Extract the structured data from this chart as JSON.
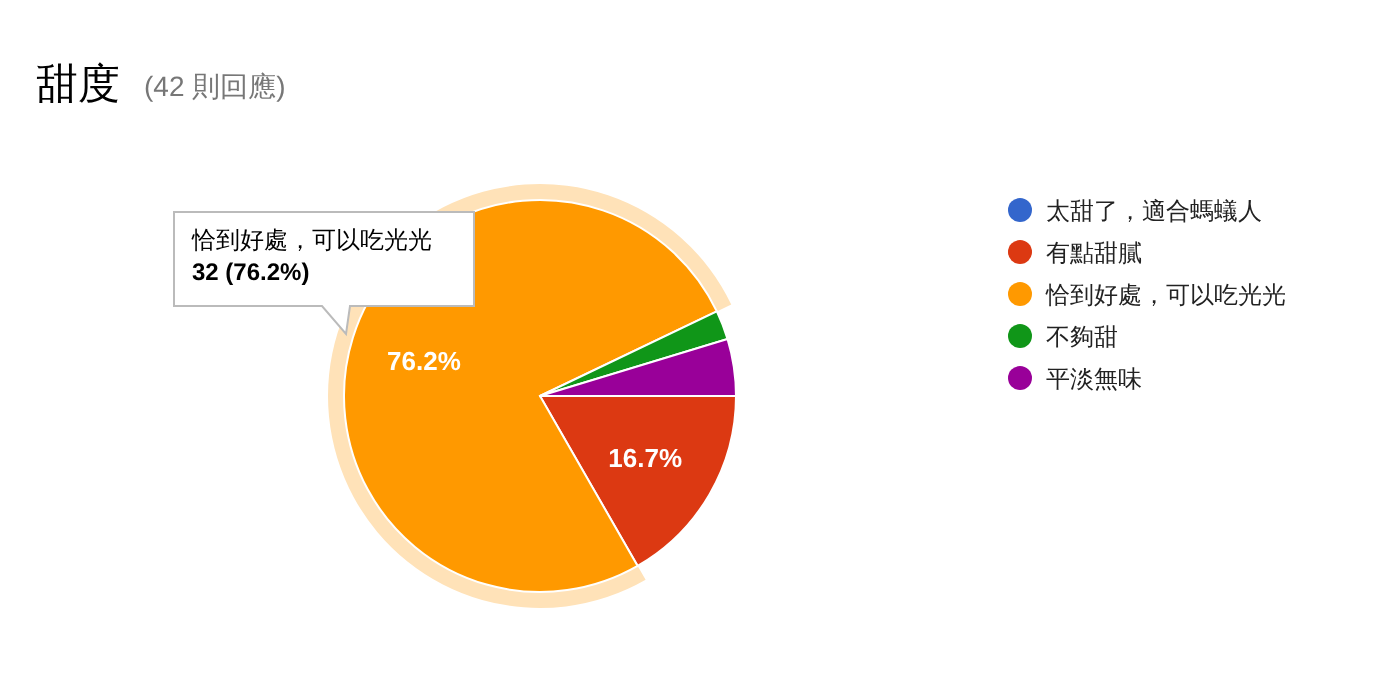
{
  "chart_data": {
    "type": "pie",
    "title": "甜度",
    "subtitle": "(42 則回應)",
    "categories": [
      "太甜了，適合螞蟻人",
      "有點甜膩",
      "恰到好處，可以吃光光",
      "不夠甜",
      "平淡無味"
    ],
    "values": [
      0,
      16.7,
      76.2,
      2.4,
      4.7
    ],
    "value_labels": [
      null,
      "16.7%",
      "76.2%",
      null,
      null
    ],
    "colors": [
      "#3366cc",
      "#dc3912",
      "#ff9900",
      "#109618",
      "#990099"
    ],
    "annotations": [
      "恰到好處，可以吃光光\n32 (76.2%)"
    ],
    "legend": "right"
  }
}
